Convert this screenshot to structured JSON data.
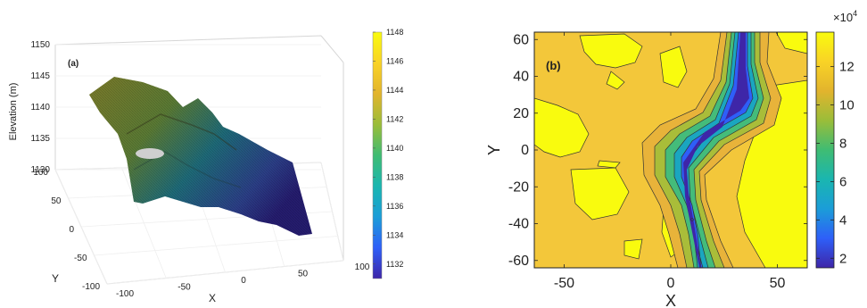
{
  "chart_data": [
    {
      "type": "surface",
      "panel_label": "(a)",
      "zlabel": "Elevation (m)",
      "xlabel": "X",
      "ylabel": "Y",
      "z_ticks": [
        1130,
        1135,
        1140,
        1145,
        1150
      ],
      "x_ticks": [
        -100,
        -50,
        0,
        50,
        100
      ],
      "y_ticks": [
        -100,
        -50,
        0,
        50,
        100
      ],
      "zlim": [
        1130,
        1150
      ],
      "colorbar": {
        "min": 1131,
        "max": 1148,
        "ticks": [
          1132,
          1134,
          1136,
          1138,
          1140,
          1142,
          1144,
          1146,
          1148
        ]
      },
      "colormap": [
        "#3e26a8",
        "#2e5ff8",
        "#1b9dd8",
        "#1ab6b0",
        "#3fbc73",
        "#9abd39",
        "#e2b42d",
        "#f9d326",
        "#f9fb0e"
      ]
    },
    {
      "type": "contour",
      "panel_label": "(b)",
      "xlabel": "X",
      "ylabel": "Y",
      "x_ticks": [
        -50,
        0,
        50
      ],
      "y_ticks": [
        60,
        40,
        20,
        0,
        -20,
        -40,
        -60
      ],
      "xlim": [
        -64,
        64
      ],
      "ylim": [
        -64,
        64
      ],
      "colorbar": {
        "min": 1.5,
        "max": 13.8,
        "ticks": [
          2,
          4,
          6,
          8,
          10,
          12
        ],
        "exponent_base": "×10",
        "exponent_power": "4"
      },
      "colormap": [
        "#3e26a8",
        "#2e5ff8",
        "#1b9dd8",
        "#1ab6b0",
        "#3fbc73",
        "#9abd39",
        "#e2b42d",
        "#f9d326",
        "#f9fb0e"
      ]
    }
  ]
}
